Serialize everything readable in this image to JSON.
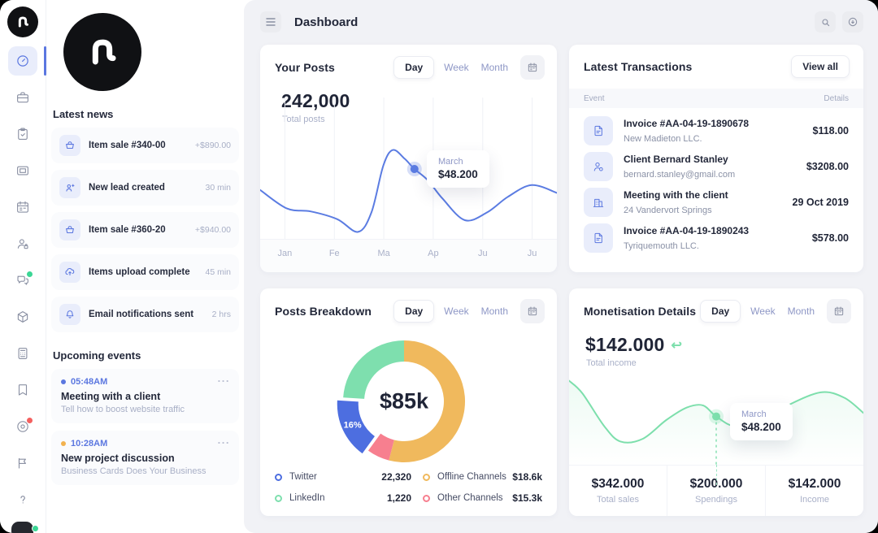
{
  "colors": {
    "accent_blue": "#5B77E0",
    "mint_green": "#7DDFAC",
    "orange": "#F0B95D",
    "pink": "#F77F8F",
    "main_bg": "#F1F2F6",
    "text_dark": "#1F2436",
    "text_muted": "#A9B0C8",
    "lavender": "#8E97C6",
    "icon_tile_bg": "#E9EDFB"
  },
  "rail": {
    "icons": [
      "gauge-icon",
      "briefcase-icon",
      "clipboard-check-icon",
      "gallery-icon",
      "calendar-icon",
      "user-badge-icon",
      "chat-icon",
      "cube-icon",
      "calculator-icon",
      "bookmark-icon",
      "disc-icon",
      "flag-icon",
      "help-icon"
    ],
    "active_icon": "gauge-icon",
    "chat_badge": "green",
    "disc_badge": "red",
    "avatar_status": "green"
  },
  "sidebar": {
    "news_title": "Latest news",
    "news": [
      {
        "icon": "basket-icon",
        "title": "Item sale #340-00",
        "meta": "+$890.00"
      },
      {
        "icon": "user-plus-icon",
        "title": "New lead created",
        "meta": "30 min"
      },
      {
        "icon": "basket-icon",
        "title": "Item sale #360-20",
        "meta": "+$940.00"
      },
      {
        "icon": "cloud-upload-icon",
        "title": "Items upload complete",
        "meta": "45 min"
      },
      {
        "icon": "bell-icon",
        "title": "Email notifications sent",
        "meta": "2 hrs"
      }
    ],
    "events_title": "Upcoming events",
    "events": [
      {
        "time": "05:48AM",
        "dot_color": "#5B77E0",
        "title": "Meeting with a client",
        "subtitle": "Tell how to boost website traffic",
        "more": "..."
      },
      {
        "time": "10:28AM",
        "dot_color": "#F2B24F",
        "title": "New project discussion",
        "subtitle": "Business Cards Does Your Business",
        "more": "..."
      }
    ]
  },
  "header": {
    "title": "Dashboard",
    "icons": [
      "menu-icon",
      "search-icon",
      "arrow-circle-icon"
    ]
  },
  "posts_card": {
    "title": "Your Posts",
    "tabs": [
      "Day",
      "Week",
      "Month"
    ],
    "active_tab": "Day",
    "total_value": "242,000",
    "total_label": "Total posts"
  },
  "transactions_card": {
    "title": "Latest Transactions",
    "action": "View all",
    "columns": [
      "Event",
      "Details"
    ],
    "rows": [
      {
        "icon": "invoice-icon",
        "title": "Invoice #AA-04-19-1890678",
        "subtitle": "New Madieton LLC.",
        "detail": "$118.00"
      },
      {
        "icon": "client-icon",
        "title": "Client Bernard Stanley",
        "subtitle": "bernard.stanley@gmail.com",
        "detail": "$3208.00"
      },
      {
        "icon": "building-icon",
        "title": "Meeting with the client",
        "subtitle": "24 Vandervort Springs",
        "detail": "29 Oct 2019"
      },
      {
        "icon": "invoice-icon",
        "title": "Invoice #AA-04-19-1890243",
        "subtitle": "Tyriquemouth LLC.",
        "detail": "$578.00"
      }
    ]
  },
  "breakdown_card": {
    "title": "Posts Breakdown",
    "tabs": [
      "Day",
      "Week",
      "Month"
    ],
    "active_tab": "Day",
    "center_label": "$85k",
    "legend": [
      {
        "name": "Twitter",
        "value": "22,320",
        "color": "#4D6EE0"
      },
      {
        "name": "LinkedIn",
        "value": "1,220",
        "color": "#7EDFAE"
      },
      {
        "name": "Offline Channels",
        "value": "$18.6k",
        "color": "#F0B95D"
      },
      {
        "name": "Other Channels",
        "value": "$15.3k",
        "color": "#F77F8F"
      }
    ]
  },
  "monetisation_card": {
    "title": "Monetisation Details",
    "tabs": [
      "Day",
      "Week",
      "Month"
    ],
    "active_tab": "Day",
    "total_value": "$142.000",
    "total_label": "Total income",
    "arrow_icon": "return-arrow-icon",
    "stats": [
      {
        "value": "$342.000",
        "label": "Total sales"
      },
      {
        "value": "$200.000",
        "label": "Spendings"
      },
      {
        "value": "$142.000",
        "label": "Income"
      }
    ]
  },
  "chart_data": [
    {
      "type": "line",
      "name": "your-posts",
      "title": "Your Posts",
      "color": "#5B7CE2",
      "grid_vertical": true,
      "x_labels": [
        "Jan",
        "Fe",
        "Ma",
        "Ap",
        "Ju",
        "Ju"
      ],
      "points_pct": [
        [
          0,
          0.49
        ],
        [
          0.09,
          0.68
        ],
        [
          0.17,
          0.71
        ],
        [
          0.26,
          0.79
        ],
        [
          0.33,
          0.92
        ],
        [
          0.375,
          0.72
        ],
        [
          0.415,
          0.24
        ],
        [
          0.447,
          0.08
        ],
        [
          0.487,
          0.17
        ],
        [
          0.52,
          0.275
        ],
        [
          0.565,
          0.39
        ],
        [
          0.615,
          0.58
        ],
        [
          0.69,
          0.8
        ],
        [
          0.765,
          0.72
        ],
        [
          0.835,
          0.56
        ],
        [
          0.915,
          0.44
        ],
        [
          1,
          0.52
        ]
      ],
      "marker": {
        "x": 0.52,
        "y": 0.275,
        "label": "March",
        "value": "$48.200"
      }
    },
    {
      "type": "donut",
      "name": "posts-breakdown",
      "center_label": "$85k",
      "slices": [
        {
          "label": "Offline Channels",
          "pct": 54,
          "color": "#F0B95D"
        },
        {
          "label": "Other Channels",
          "pct": 6,
          "color": "#F77F8F"
        },
        {
          "label": "Twitter",
          "pct": 16,
          "color": "#4D6EE0",
          "exploded": true,
          "show_label": "16%"
        },
        {
          "label": "LinkedIn",
          "pct": 24,
          "color": "#7EDFAE"
        }
      ]
    },
    {
      "type": "line",
      "name": "monetisation",
      "title": "Monetisation Details",
      "color": "#7DDFAC",
      "area_fill": true,
      "points_pct": [
        [
          0,
          0.06
        ],
        [
          0.045,
          0.2
        ],
        [
          0.12,
          0.57
        ],
        [
          0.175,
          0.74
        ],
        [
          0.25,
          0.71
        ],
        [
          0.33,
          0.5
        ],
        [
          0.4,
          0.36
        ],
        [
          0.455,
          0.335
        ],
        [
          0.5,
          0.46
        ],
        [
          0.565,
          0.57
        ],
        [
          0.655,
          0.5
        ],
        [
          0.74,
          0.34
        ],
        [
          0.855,
          0.19
        ],
        [
          0.935,
          0.25
        ],
        [
          1,
          0.42
        ]
      ],
      "marker": {
        "x": 0.5,
        "y": 0.46,
        "label": "March",
        "value": "$48.200",
        "drop_line": true
      }
    }
  ]
}
